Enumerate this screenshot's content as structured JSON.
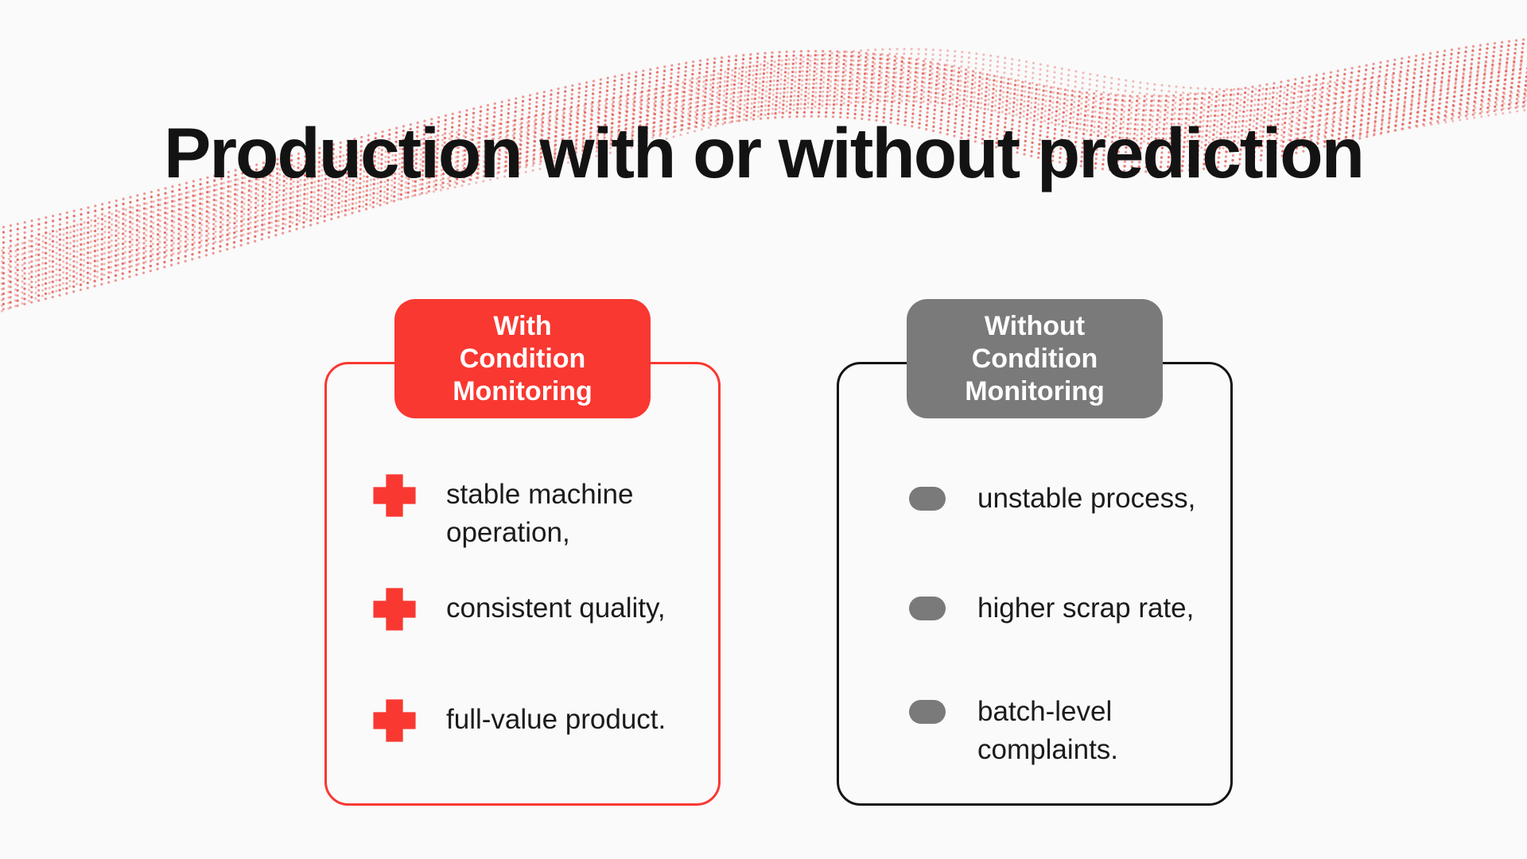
{
  "theme": {
    "background": "#FAFAFA",
    "accent_red": "#F93831",
    "accent_gray": "#7A7A7A",
    "wave_red": "#E5554E",
    "text_dark": "#1B1B1B",
    "border_dark": "#141414"
  },
  "title": "Production with or without prediction",
  "cards": [
    {
      "name": "with-condition-monitoring",
      "badge": [
        "With",
        "Condition",
        "Monitoring"
      ],
      "items": [
        {
          "icon": "plus-icon",
          "text": [
            "stable machine",
            "operation,"
          ]
        },
        {
          "icon": "plus-icon",
          "text": "consistent quality,"
        },
        {
          "icon": "plus-icon",
          "text": "full-value product."
        }
      ]
    },
    {
      "name": "without-condition-monitoring",
      "badge": [
        "Without",
        "Condition",
        "Monitoring"
      ],
      "items": [
        {
          "icon": "dash-icon",
          "text": "unstable process,"
        },
        {
          "icon": "dash-icon",
          "text": "higher scrap rate,"
        },
        {
          "icon": "dash-icon",
          "text": [
            "batch-level",
            "complaints."
          ]
        }
      ]
    }
  ]
}
